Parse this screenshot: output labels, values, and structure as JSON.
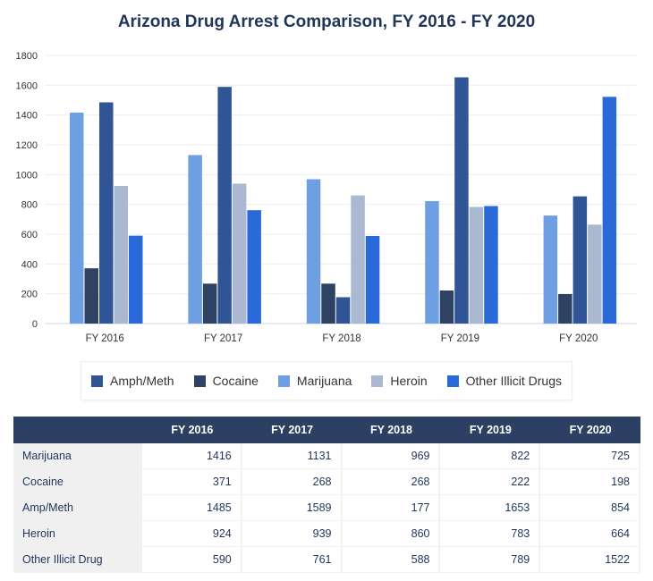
{
  "chart_data": {
    "type": "bar",
    "title": "Arizona Drug Arrest Comparison, FY 2016 - FY 2020",
    "categories": [
      "FY 2016",
      "FY 2017",
      "FY 2018",
      "FY 2019",
      "FY 2020"
    ],
    "ylim": [
      0,
      1800
    ],
    "yticks": [
      0,
      200,
      400,
      600,
      800,
      1000,
      1200,
      1400,
      1600,
      1800
    ],
    "grid": true,
    "legend_position": "bottom",
    "series": [
      {
        "name": "Marijuana",
        "color": "#6f9fe3",
        "values": [
          1416,
          1131,
          969,
          822,
          725
        ]
      },
      {
        "name": "Cocaine",
        "color": "#2e4264",
        "values": [
          371,
          268,
          268,
          222,
          198
        ]
      },
      {
        "name": "Amph/Meth",
        "color": "#2f5597",
        "values": [
          1485,
          1589,
          177,
          1653,
          854
        ]
      },
      {
        "name": "Heroin",
        "color": "#aab9d1",
        "values": [
          924,
          939,
          860,
          783,
          664
        ]
      },
      {
        "name": "Other Illicit Drugs",
        "color": "#2a6ad8",
        "values": [
          590,
          761,
          588,
          789,
          1522
        ]
      }
    ],
    "legend_order": [
      "Amph/Meth",
      "Cocaine",
      "Marijuana",
      "Heroin",
      "Other Illicit Drugs"
    ]
  },
  "table": {
    "headers": [
      "",
      "FY 2016",
      "FY 2017",
      "FY 2018",
      "FY 2019",
      "FY 2020"
    ],
    "rows": [
      {
        "label": "Marijuana",
        "values": [
          "1416",
          "1131",
          "969",
          "822",
          "725"
        ]
      },
      {
        "label": "Cocaine",
        "values": [
          "371",
          "268",
          "268",
          "222",
          "198"
        ]
      },
      {
        "label": "Amp/Meth",
        "values": [
          "1485",
          "1589",
          "177",
          "1653",
          "854"
        ]
      },
      {
        "label": "Heroin",
        "values": [
          "924",
          "939",
          "860",
          "783",
          "664"
        ]
      },
      {
        "label": "Other Illicit Drug",
        "values": [
          "590",
          "761",
          "588",
          "789",
          "1522"
        ]
      }
    ]
  }
}
